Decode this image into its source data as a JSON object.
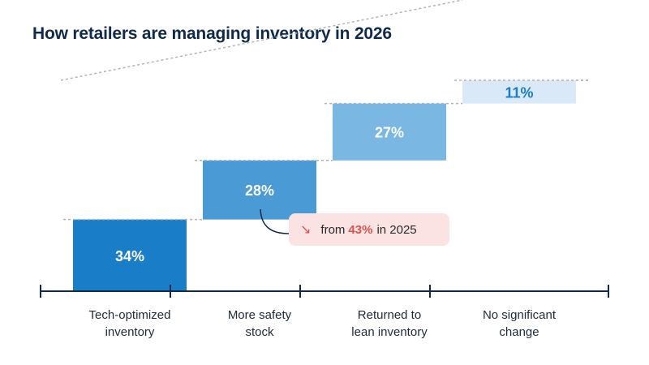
{
  "chart_data": {
    "type": "bar",
    "title": "How retailers are managing inventory in 2026",
    "categories": [
      "Tech-optimized\ninventory",
      "More safety\nstock",
      "Returned to\nlean inventory",
      "No significant\nchange"
    ],
    "values": [
      34,
      28,
      27,
      11
    ],
    "value_labels": [
      "34%",
      "28%",
      "27%",
      "11%"
    ],
    "colors": [
      "#1a7dc8",
      "#4a9ad6",
      "#7ab7e3",
      "#d9e9f7"
    ],
    "label_colors": [
      "#ffffff",
      "#ffffff",
      "#ffffff",
      "#1a7dc8"
    ],
    "annotation": {
      "prefix": "from",
      "value": "43%",
      "suffix": "in 2025",
      "icon": "trend-down-icon",
      "highlight_color": "#d9534f"
    }
  }
}
